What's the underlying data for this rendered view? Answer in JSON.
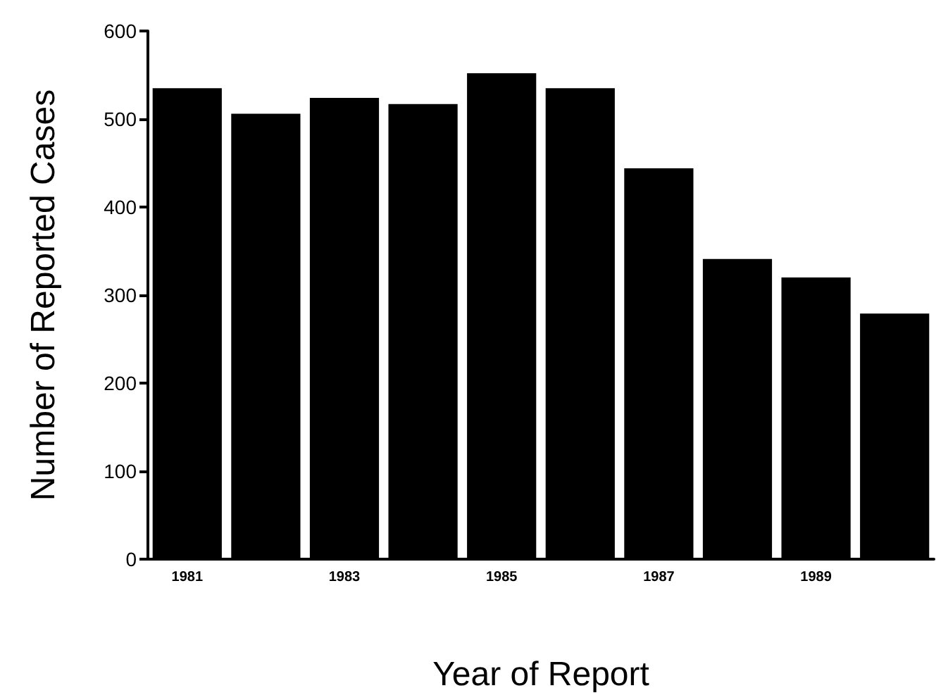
{
  "chart_data": {
    "type": "bar",
    "xlabel": "Year of Report",
    "ylabel": "Number of Reported Cases",
    "categories": [
      "1981",
      null,
      "1983",
      null,
      "1985",
      null,
      "1987",
      null,
      "1989",
      null
    ],
    "values": [
      535,
      506,
      524,
      517,
      552,
      535,
      444,
      341,
      320,
      279
    ],
    "color": "#000000",
    "ylim": [
      0,
      600
    ],
    "yticks": [
      0,
      100,
      200,
      300,
      400,
      500,
      600
    ],
    "grid": false
  }
}
